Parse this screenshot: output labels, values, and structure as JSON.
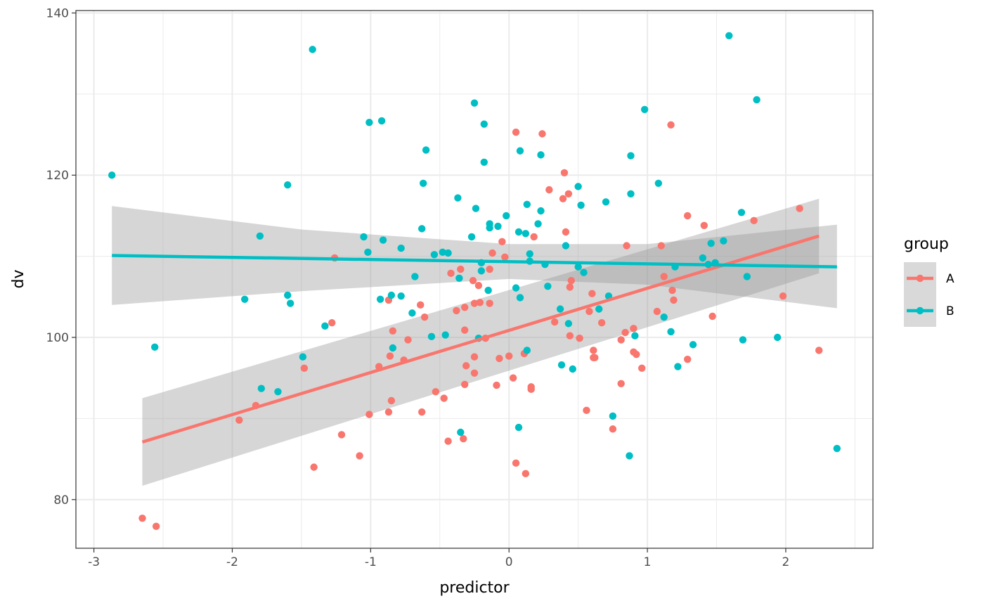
{
  "chart_data": {
    "type": "scatter",
    "xlabel": "predictor",
    "ylabel": "dv",
    "xlim": [
      -3.13,
      2.63
    ],
    "ylim": [
      74.0,
      140.3
    ],
    "x_ticks": [
      -3,
      -2,
      -1,
      0,
      1,
      2
    ],
    "y_ticks": [
      80,
      100,
      120,
      140
    ],
    "x_tick_labels": [
      "-3",
      "-2",
      "-1",
      "0",
      "1",
      "2"
    ],
    "y_tick_labels": [
      "80",
      "100",
      "120",
      "140"
    ],
    "grid": true,
    "legend": {
      "title": "group",
      "position": "right"
    },
    "series": [
      {
        "name": "A",
        "color": "#F8766D",
        "fit": {
          "x": [
            -2.65,
            2.24
          ],
          "y": [
            87.1,
            112.5
          ]
        },
        "band": {
          "x": [
            -2.65,
            2.24
          ],
          "lower": [
            81.7,
            107.9
          ],
          "upper": [
            92.5,
            117.1
          ]
        },
        "points": [
          [
            -2.65,
            77.7
          ],
          [
            -2.55,
            76.7
          ],
          [
            -1.95,
            89.8
          ],
          [
            -1.83,
            91.6
          ],
          [
            -1.48,
            96.2
          ],
          [
            -1.41,
            84.0
          ],
          [
            -1.28,
            101.8
          ],
          [
            -1.26,
            109.8
          ],
          [
            -1.21,
            88.0
          ],
          [
            -1.08,
            85.4
          ],
          [
            -1.01,
            90.5
          ],
          [
            -0.94,
            96.4
          ],
          [
            -0.87,
            104.6
          ],
          [
            -0.86,
            97.7
          ],
          [
            -0.87,
            90.8
          ],
          [
            -0.85,
            92.2
          ],
          [
            -0.84,
            100.8
          ],
          [
            -0.76,
            97.2
          ],
          [
            -0.73,
            99.7
          ],
          [
            -0.64,
            104.0
          ],
          [
            -0.63,
            90.8
          ],
          [
            -0.61,
            102.5
          ],
          [
            -0.53,
            93.3
          ],
          [
            -0.47,
            92.5
          ],
          [
            -0.44,
            87.2
          ],
          [
            -0.42,
            107.9
          ],
          [
            -0.38,
            103.3
          ],
          [
            -0.35,
            108.4
          ],
          [
            -0.32,
            94.2
          ],
          [
            -0.32,
            103.7
          ],
          [
            -0.32,
            100.9
          ],
          [
            -0.31,
            96.5
          ],
          [
            -0.33,
            87.5
          ],
          [
            -0.26,
            107.0
          ],
          [
            -0.25,
            104.2
          ],
          [
            -0.25,
            95.6
          ],
          [
            -0.25,
            97.6
          ],
          [
            -0.21,
            104.3
          ],
          [
            -0.22,
            106.4
          ],
          [
            -0.17,
            99.9
          ],
          [
            -0.14,
            108.4
          ],
          [
            -0.14,
            104.2
          ],
          [
            -0.12,
            110.4
          ],
          [
            -0.09,
            94.1
          ],
          [
            -0.07,
            97.4
          ],
          [
            -0.05,
            111.8
          ],
          [
            -0.03,
            109.9
          ],
          [
            0.0,
            97.7
          ],
          [
            0.03,
            95.0
          ],
          [
            0.05,
            125.3
          ],
          [
            0.05,
            84.5
          ],
          [
            0.11,
            98.0
          ],
          [
            0.12,
            83.2
          ],
          [
            0.16,
            93.9
          ],
          [
            0.16,
            93.6
          ],
          [
            0.18,
            112.4
          ],
          [
            0.24,
            125.1
          ],
          [
            0.29,
            118.2
          ],
          [
            0.33,
            101.9
          ],
          [
            0.39,
            117.1
          ],
          [
            0.4,
            120.3
          ],
          [
            0.41,
            113.0
          ],
          [
            0.43,
            117.7
          ],
          [
            0.44,
            106.2
          ],
          [
            0.45,
            107.0
          ],
          [
            0.44,
            100.2
          ],
          [
            0.51,
            99.9
          ],
          [
            0.56,
            91.0
          ],
          [
            0.58,
            103.2
          ],
          [
            0.6,
            105.4
          ],
          [
            0.61,
            97.5
          ],
          [
            0.61,
            98.4
          ],
          [
            0.62,
            97.5
          ],
          [
            0.67,
            101.8
          ],
          [
            0.75,
            88.7
          ],
          [
            0.81,
            94.3
          ],
          [
            0.81,
            99.7
          ],
          [
            0.84,
            100.6
          ],
          [
            0.85,
            111.3
          ],
          [
            0.9,
            101.1
          ],
          [
            0.9,
            98.2
          ],
          [
            0.92,
            97.9
          ],
          [
            0.96,
            96.2
          ],
          [
            1.07,
            103.2
          ],
          [
            1.1,
            111.3
          ],
          [
            1.12,
            107.5
          ],
          [
            1.17,
            126.2
          ],
          [
            1.18,
            105.8
          ],
          [
            1.19,
            104.6
          ],
          [
            1.29,
            115.0
          ],
          [
            1.29,
            97.3
          ],
          [
            1.41,
            113.8
          ],
          [
            1.47,
            102.6
          ],
          [
            1.77,
            114.4
          ],
          [
            1.98,
            105.1
          ],
          [
            2.1,
            115.9
          ],
          [
            2.24,
            98.4
          ]
        ]
      },
      {
        "name": "B",
        "color": "#00BFC4",
        "fit": {
          "x": [
            -2.87,
            2.37
          ],
          "y": [
            110.1,
            108.7
          ]
        },
        "band": {
          "x": [
            -2.87,
            -1.5,
            0.0,
            1.0,
            2.37
          ],
          "lower": [
            104.0,
            105.7,
            107.2,
            106.5,
            103.6
          ],
          "upper": [
            116.2,
            113.3,
            111.5,
            111.5,
            113.9
          ]
        },
        "points": [
          [
            -2.87,
            120.0
          ],
          [
            -2.56,
            98.8
          ],
          [
            -1.91,
            104.7
          ],
          [
            -1.8,
            112.5
          ],
          [
            -1.79,
            93.7
          ],
          [
            -1.67,
            93.3
          ],
          [
            -1.6,
            105.2
          ],
          [
            -1.6,
            118.8
          ],
          [
            -1.58,
            104.2
          ],
          [
            -1.49,
            97.6
          ],
          [
            -1.42,
            135.5
          ],
          [
            -1.33,
            101.4
          ],
          [
            -1.05,
            112.4
          ],
          [
            -1.02,
            110.5
          ],
          [
            -1.01,
            126.5
          ],
          [
            -0.93,
            104.7
          ],
          [
            -0.92,
            126.7
          ],
          [
            -0.91,
            112.0
          ],
          [
            -0.85,
            105.2
          ],
          [
            -0.84,
            98.7
          ],
          [
            -0.78,
            111.0
          ],
          [
            -0.78,
            105.1
          ],
          [
            -0.7,
            103.0
          ],
          [
            -0.68,
            107.5
          ],
          [
            -0.63,
            113.4
          ],
          [
            -0.62,
            119.0
          ],
          [
            -0.6,
            123.1
          ],
          [
            -0.56,
            100.1
          ],
          [
            -0.54,
            110.2
          ],
          [
            -0.48,
            110.5
          ],
          [
            -0.44,
            110.4
          ],
          [
            -0.46,
            100.3
          ],
          [
            -0.37,
            117.2
          ],
          [
            -0.35,
            88.3
          ],
          [
            -0.36,
            107.3
          ],
          [
            -0.27,
            112.4
          ],
          [
            -0.25,
            128.9
          ],
          [
            -0.24,
            115.9
          ],
          [
            -0.22,
            99.9
          ],
          [
            -0.2,
            109.2
          ],
          [
            -0.2,
            108.2
          ],
          [
            -0.18,
            126.3
          ],
          [
            -0.18,
            121.6
          ],
          [
            -0.15,
            105.8
          ],
          [
            -0.14,
            114.0
          ],
          [
            -0.14,
            113.5
          ],
          [
            -0.08,
            113.7
          ],
          [
            -0.02,
            115.0
          ],
          [
            0.05,
            106.1
          ],
          [
            0.08,
            123.0
          ],
          [
            0.07,
            113.0
          ],
          [
            0.07,
            88.9
          ],
          [
            0.08,
            104.9
          ],
          [
            0.12,
            112.8
          ],
          [
            0.13,
            116.4
          ],
          [
            0.13,
            98.4
          ],
          [
            0.15,
            110.3
          ],
          [
            0.15,
            109.4
          ],
          [
            0.21,
            114.0
          ],
          [
            0.23,
            115.6
          ],
          [
            0.23,
            122.5
          ],
          [
            0.26,
            109.0
          ],
          [
            0.28,
            106.3
          ],
          [
            0.37,
            103.5
          ],
          [
            0.38,
            96.6
          ],
          [
            0.41,
            111.3
          ],
          [
            0.43,
            101.7
          ],
          [
            0.46,
            96.1
          ],
          [
            0.5,
            118.6
          ],
          [
            0.5,
            108.7
          ],
          [
            0.52,
            116.3
          ],
          [
            0.54,
            108.0
          ],
          [
            0.65,
            103.5
          ],
          [
            0.7,
            116.7
          ],
          [
            0.72,
            105.1
          ],
          [
            0.75,
            90.3
          ],
          [
            0.87,
            85.4
          ],
          [
            0.88,
            122.4
          ],
          [
            0.88,
            117.7
          ],
          [
            0.91,
            100.2
          ],
          [
            0.98,
            128.1
          ],
          [
            1.08,
            119.0
          ],
          [
            1.12,
            102.5
          ],
          [
            1.17,
            100.7
          ],
          [
            1.2,
            108.7
          ],
          [
            1.22,
            96.4
          ],
          [
            1.33,
            99.1
          ],
          [
            1.4,
            109.8
          ],
          [
            1.44,
            109.0
          ],
          [
            1.46,
            111.6
          ],
          [
            1.49,
            109.2
          ],
          [
            1.55,
            111.9
          ],
          [
            1.59,
            137.2
          ],
          [
            1.68,
            115.4
          ],
          [
            1.69,
            99.7
          ],
          [
            1.72,
            107.5
          ],
          [
            1.79,
            129.3
          ],
          [
            1.94,
            100.0
          ],
          [
            2.37,
            86.3
          ]
        ]
      }
    ]
  }
}
